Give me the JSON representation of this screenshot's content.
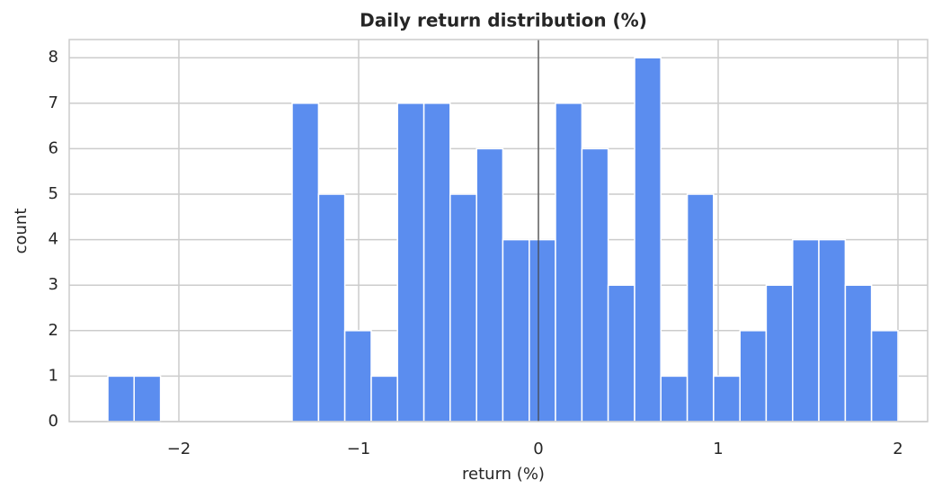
{
  "chart_data": {
    "type": "histogram",
    "title": "Daily return distribution (%)",
    "x_label": "return (%)",
    "y_label": "count",
    "bins": [
      -2.395,
      -2.249,
      -2.102,
      -1.956,
      -1.809,
      -1.663,
      -1.516,
      -1.37,
      -1.223,
      -1.077,
      -0.93,
      -0.784,
      -0.637,
      -0.491,
      -0.344,
      -0.198,
      -0.051,
      0.095,
      0.242,
      0.388,
      0.535,
      0.681,
      0.828,
      0.974,
      1.121,
      1.267,
      1.414,
      1.56,
      1.707,
      1.853,
      2.0
    ],
    "values": [
      1,
      1,
      0,
      0,
      0,
      0,
      0,
      7,
      5,
      2,
      1,
      7,
      7,
      5,
      6,
      4,
      4,
      7,
      6,
      3,
      8,
      1,
      5,
      1,
      2,
      3,
      4,
      4,
      3,
      2
    ],
    "color": "#5b8def",
    "xlim": [
      -2.61,
      2.165
    ],
    "ylim": [
      0,
      8.4
    ],
    "xticks": [
      {
        "value": -2,
        "label": "−2"
      },
      {
        "value": -1,
        "label": "−1"
      },
      0,
      1,
      2
    ],
    "yticks": [
      0,
      1,
      2,
      3,
      4,
      5,
      6,
      7,
      8
    ],
    "vline": 0,
    "grid": true
  }
}
